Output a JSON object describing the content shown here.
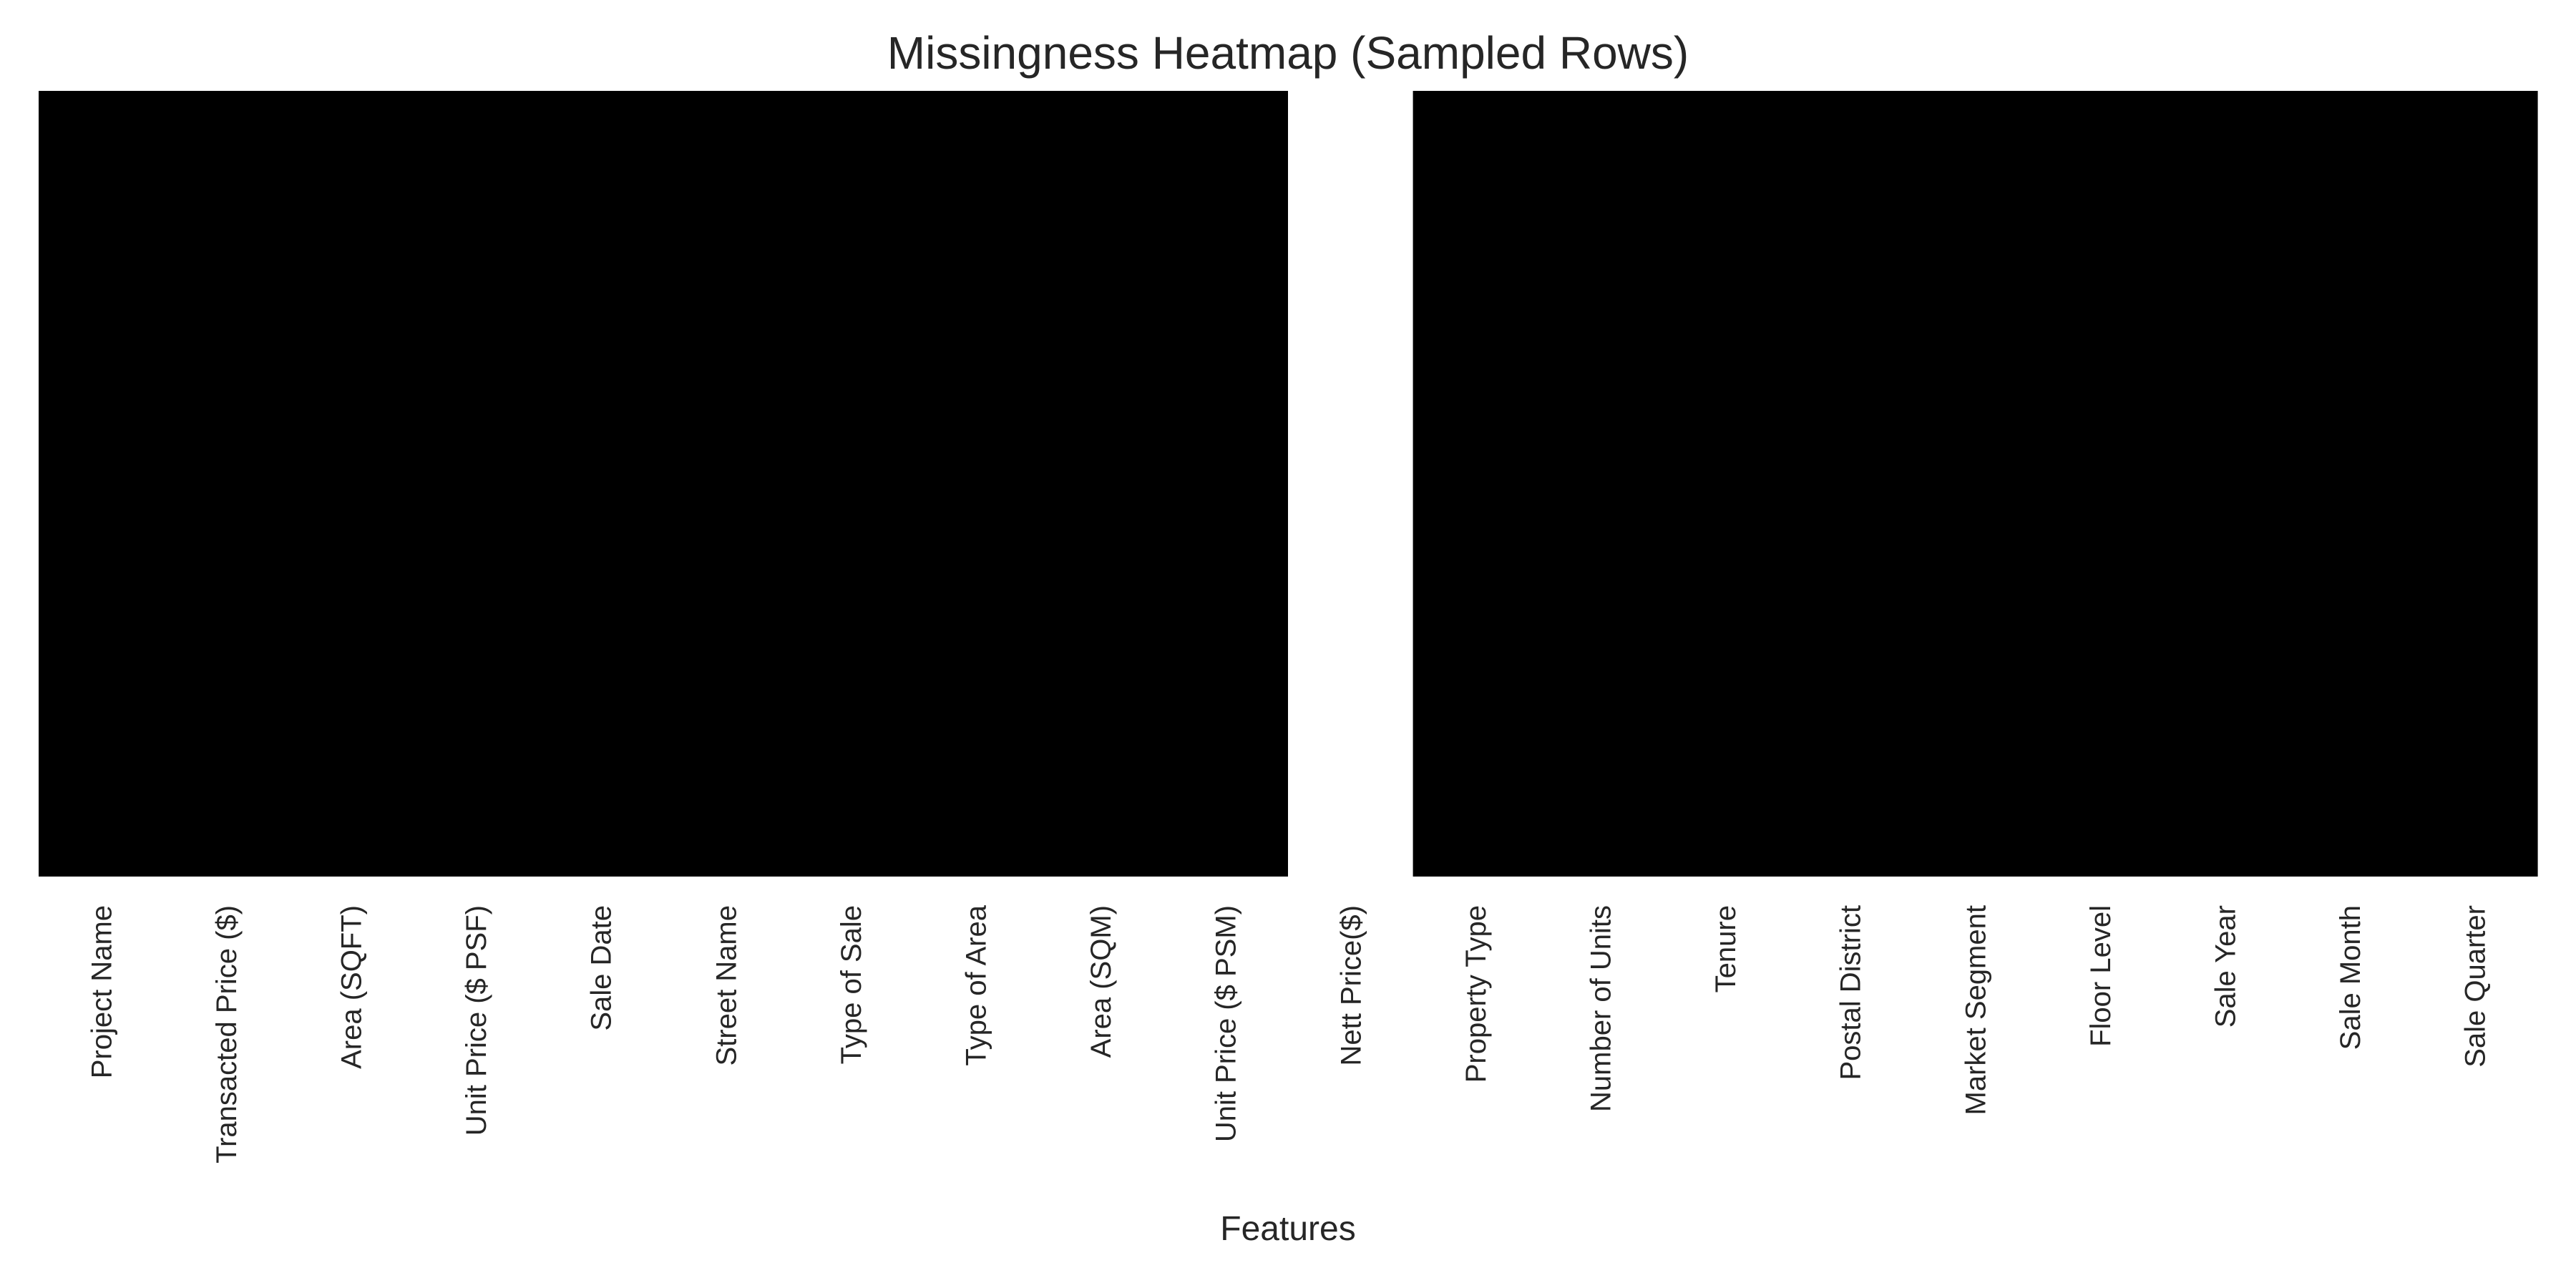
{
  "chart_data": {
    "type": "heatmap",
    "title": "Missingness Heatmap (Sampled Rows)",
    "xlabel": "Features",
    "ylabel": "",
    "columns": [
      "Project Name",
      "Transacted Price ($)",
      "Area (SQFT)",
      "Unit Price ($ PSF)",
      "Sale Date",
      "Street Name",
      "Type of Sale",
      "Type of Area",
      "Area (SQM)",
      "Unit Price ($ PSM)",
      "Nett Price($)",
      "Property Type",
      "Number of Units",
      "Tenure",
      "Postal District",
      "Market Segment",
      "Floor Level",
      "Sale Year",
      "Sale Month",
      "Sale Quarter"
    ],
    "missing": [
      0,
      0,
      0,
      0,
      0,
      0,
      0,
      0,
      0,
      0,
      1,
      0,
      0,
      0,
      0,
      0,
      0,
      0,
      0,
      0
    ],
    "colors": {
      "present": "#000000",
      "missing": "#ffffff",
      "text": "#262626"
    }
  }
}
